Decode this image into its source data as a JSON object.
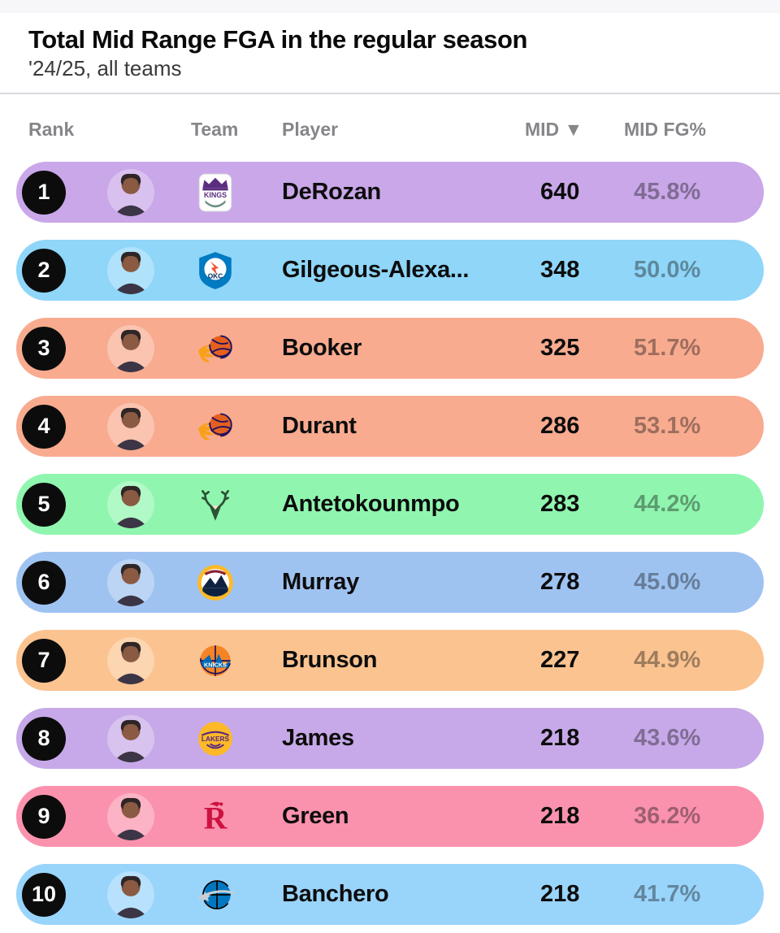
{
  "header": {
    "title": "Total Mid Range FGA in the regular season",
    "subtitle": "'24/25, all teams"
  },
  "table": {
    "columns": {
      "rank": "Rank",
      "team": "Team",
      "player": "Player",
      "mid": "MID ▼",
      "mid_fg": "MID FG%"
    },
    "sort": {
      "column": "MID",
      "direction": "desc",
      "indicator": "▼"
    },
    "rows": [
      {
        "rank": "1",
        "team_icon": "kings-logo",
        "player": "DeRozan",
        "mid": "640",
        "mid_fg": "45.8%",
        "row_color": "#c9a7e9"
      },
      {
        "rank": "2",
        "team_icon": "thunder-logo",
        "player": "Gilgeous-Alexa...",
        "mid": "348",
        "mid_fg": "50.0%",
        "row_color": "#8fd6f9"
      },
      {
        "rank": "3",
        "team_icon": "suns-logo",
        "player": "Booker",
        "mid": "325",
        "mid_fg": "51.7%",
        "row_color": "#f8ab8f"
      },
      {
        "rank": "4",
        "team_icon": "suns-logo",
        "player": "Durant",
        "mid": "286",
        "mid_fg": "53.1%",
        "row_color": "#f8ab8f"
      },
      {
        "rank": "5",
        "team_icon": "bucks-logo",
        "player": "Antetokounmpo",
        "mid": "283",
        "mid_fg": "44.2%",
        "row_color": "#90f6af"
      },
      {
        "rank": "6",
        "team_icon": "nuggets-logo",
        "player": "Murray",
        "mid": "278",
        "mid_fg": "45.0%",
        "row_color": "#9fc3f1"
      },
      {
        "rank": "7",
        "team_icon": "knicks-logo",
        "player": "Brunson",
        "mid": "227",
        "mid_fg": "44.9%",
        "row_color": "#fbc390"
      },
      {
        "rank": "8",
        "team_icon": "lakers-logo",
        "player": "James",
        "mid": "218",
        "mid_fg": "43.6%",
        "row_color": "#c7a9e9"
      },
      {
        "rank": "9",
        "team_icon": "rockets-logo",
        "player": "Green",
        "mid": "218",
        "mid_fg": "36.2%",
        "row_color": "#fb92ad"
      },
      {
        "rank": "10",
        "team_icon": "magic-logo",
        "player": "Banchero",
        "mid": "218",
        "mid_fg": "41.7%",
        "row_color": "#99d4fb"
      }
    ]
  },
  "chart_data": {
    "type": "table",
    "title": "Total Mid Range FGA in the regular season",
    "subtitle": "'24/25, all teams",
    "columns": [
      "Rank",
      "Team",
      "Player",
      "MID",
      "MID FG%"
    ],
    "sort": "MID descending",
    "rows": [
      [
        1,
        "Kings",
        "DeRozan",
        640,
        "45.8%"
      ],
      [
        2,
        "Thunder",
        "Gilgeous-Alexa...",
        348,
        "50.0%"
      ],
      [
        3,
        "Suns",
        "Booker",
        325,
        "51.7%"
      ],
      [
        4,
        "Suns",
        "Durant",
        286,
        "53.1%"
      ],
      [
        5,
        "Bucks",
        "Antetokounmpo",
        283,
        "44.2%"
      ],
      [
        6,
        "Nuggets",
        "Murray",
        278,
        "45.0%"
      ],
      [
        7,
        "Knicks",
        "Brunson",
        227,
        "44.9%"
      ],
      [
        8,
        "Lakers",
        "James",
        218,
        "43.6%"
      ],
      [
        9,
        "Rockets",
        "Green",
        218,
        "36.2%"
      ],
      [
        10,
        "Magic",
        "Banchero",
        218,
        "41.7%"
      ]
    ]
  }
}
